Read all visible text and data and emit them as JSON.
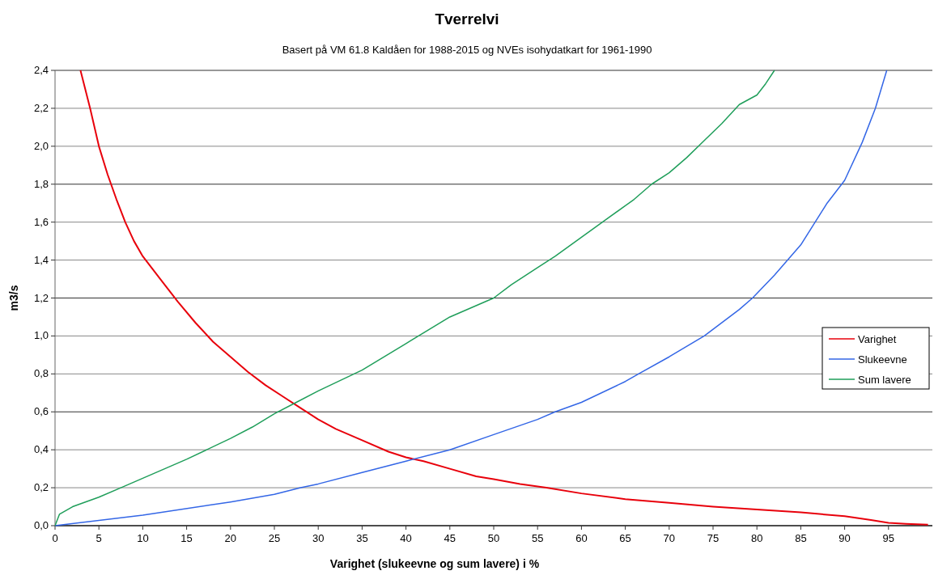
{
  "chart_data": {
    "type": "line",
    "title": "Tverrelvi",
    "subtitle": "Basert på VM 61.8 Kaldåen for 1988-2015 og NVEs isohydatkart for 1961-1990",
    "xlabel": "Varighet (slukeevne og sum lavere) i %",
    "ylabel": "m3/s",
    "xlim": [
      0,
      100
    ],
    "xticks": [
      0,
      5,
      10,
      15,
      20,
      25,
      30,
      35,
      40,
      45,
      50,
      55,
      60,
      65,
      70,
      75,
      80,
      85,
      90,
      95
    ],
    "ylim": [
      0,
      2.4
    ],
    "yticks": [
      {
        "value": 0,
        "label": "0,0"
      },
      {
        "value": 0.2,
        "label": "0,2"
      },
      {
        "value": 0.4,
        "label": "0,4"
      },
      {
        "value": 0.6,
        "label": "0,6"
      },
      {
        "value": 0.8,
        "label": "0,8"
      },
      {
        "value": 1,
        "label": "1,0"
      },
      {
        "value": 1.2,
        "label": "1,2"
      },
      {
        "value": 1.4,
        "label": "1,4"
      },
      {
        "value": 1.6,
        "label": "1,6"
      },
      {
        "value": 1.8,
        "label": "1,8"
      },
      {
        "value": 2,
        "label": "2,0"
      },
      {
        "value": 2.2,
        "label": "2,2"
      },
      {
        "value": 2.4,
        "label": "2,4"
      }
    ],
    "grid": "y",
    "legend": "right",
    "marker": "none",
    "line_style": "solid",
    "series": [
      {
        "name": "Varighet",
        "color": "#e8000b",
        "x": [
          2.9,
          4,
          5,
          6,
          7,
          8,
          9,
          10,
          12,
          14,
          16,
          18,
          20,
          22,
          24,
          26,
          28,
          30,
          32,
          35,
          38,
          40,
          42,
          45,
          48,
          50,
          53,
          56,
          60,
          65,
          70,
          75,
          80,
          85,
          90,
          93,
          95,
          97,
          99.5
        ],
        "values": [
          2.4,
          2.2,
          2.0,
          1.85,
          1.72,
          1.6,
          1.5,
          1.42,
          1.3,
          1.18,
          1.07,
          0.97,
          0.89,
          0.81,
          0.74,
          0.68,
          0.62,
          0.56,
          0.51,
          0.45,
          0.39,
          0.36,
          0.34,
          0.3,
          0.26,
          0.245,
          0.22,
          0.2,
          0.17,
          0.14,
          0.12,
          0.1,
          0.085,
          0.07,
          0.05,
          0.03,
          0.015,
          0.01,
          0.005
        ]
      },
      {
        "name": "Slukeevne",
        "color": "#3366e6",
        "x": [
          0,
          10,
          20,
          25,
          28,
          30,
          35,
          40,
          45,
          50,
          55,
          57,
          60,
          65,
          66.5,
          70,
          74,
          78,
          79.5,
          82,
          85,
          88,
          90,
          92,
          93.5,
          94.8
        ],
        "values": [
          0,
          0.055,
          0.125,
          0.165,
          0.2,
          0.22,
          0.28,
          0.34,
          0.4,
          0.48,
          0.56,
          0.6,
          0.65,
          0.76,
          0.8,
          0.89,
          1.0,
          1.14,
          1.2,
          1.32,
          1.48,
          1.7,
          1.82,
          2.02,
          2.2,
          2.4
        ]
      },
      {
        "name": "Sum lavere",
        "color": "#1f9e5a",
        "x": [
          0,
          0.5,
          2,
          5,
          7.5,
          10,
          15,
          20,
          22.5,
          25,
          27.5,
          30,
          35,
          40,
          45,
          50,
          52,
          55,
          57,
          60,
          63,
          66,
          68,
          70,
          72,
          74,
          76,
          78,
          80,
          81,
          82
        ],
        "values": [
          0,
          0.06,
          0.1,
          0.15,
          0.2,
          0.25,
          0.35,
          0.46,
          0.52,
          0.59,
          0.65,
          0.71,
          0.82,
          0.96,
          1.1,
          1.2,
          1.27,
          1.36,
          1.42,
          1.52,
          1.62,
          1.72,
          1.8,
          1.86,
          1.94,
          2.03,
          2.12,
          2.22,
          2.27,
          2.33,
          2.4
        ]
      }
    ]
  }
}
